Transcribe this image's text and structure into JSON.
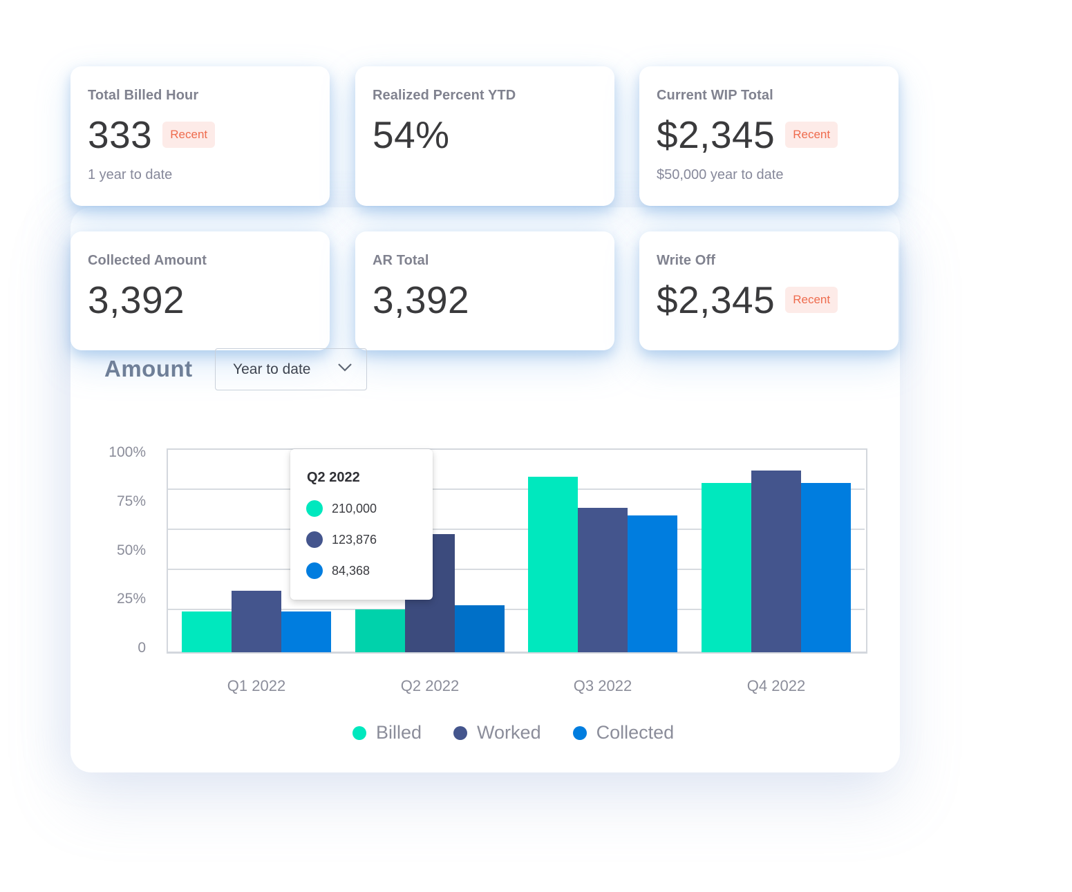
{
  "cards": [
    {
      "title": "Total Billed Hour",
      "value": "333",
      "badge": "Recent",
      "sub": "1 year to date"
    },
    {
      "title": "Realized Percent YTD",
      "value": "54%",
      "badge": null,
      "sub": null
    },
    {
      "title": "Current WIP Total",
      "value": "$2,345",
      "badge": "Recent",
      "sub": "$50,000 year to date"
    },
    {
      "title": "Collected Amount",
      "value": "3,392",
      "badge": null,
      "sub": null
    },
    {
      "title": "AR Total",
      "value": "3,392",
      "badge": null,
      "sub": null
    },
    {
      "title": "Write Off",
      "value": "$2,345",
      "badge": "Recent",
      "sub": null
    }
  ],
  "amount_section": {
    "label": "Amount",
    "period_select": {
      "value": "Year to date",
      "icon": "chevron-down-icon"
    }
  },
  "colors": {
    "billed": "#00e8be",
    "worked": "#44558d",
    "collected": "#007ddf",
    "billed_hover": "#00d2ab",
    "worked_hover": "#3c4b7d",
    "collected_hover": "#0070c8",
    "badge_bg": "#fdebe8",
    "badge_text": "#ee6b4d"
  },
  "tooltip": {
    "title": "Q2 2022",
    "rows": [
      {
        "series": "Billed",
        "value": "210,000"
      },
      {
        "series": "Worked",
        "value": "123,876"
      },
      {
        "series": "Collected",
        "value": "84,368"
      }
    ]
  },
  "chart_data": {
    "type": "bar",
    "title": "Amount",
    "xlabel": "",
    "ylabel": "",
    "categories": [
      "Q1 2022",
      "Q2 2022",
      "Q3 2022",
      "Q4 2022"
    ],
    "series": [
      {
        "name": "Billed",
        "values": [
          20,
          21,
          86,
          83
        ]
      },
      {
        "name": "Worked",
        "values": [
          30,
          58,
          71,
          89
        ]
      },
      {
        "name": "Collected",
        "values": [
          20,
          23,
          67,
          83
        ]
      }
    ],
    "yticks": [
      "100%",
      "75%",
      "50%",
      "25%",
      "0"
    ],
    "ylim": [
      0,
      100
    ],
    "grid": true,
    "legend_position": "bottom",
    "highlighted_category": "Q2 2022"
  }
}
